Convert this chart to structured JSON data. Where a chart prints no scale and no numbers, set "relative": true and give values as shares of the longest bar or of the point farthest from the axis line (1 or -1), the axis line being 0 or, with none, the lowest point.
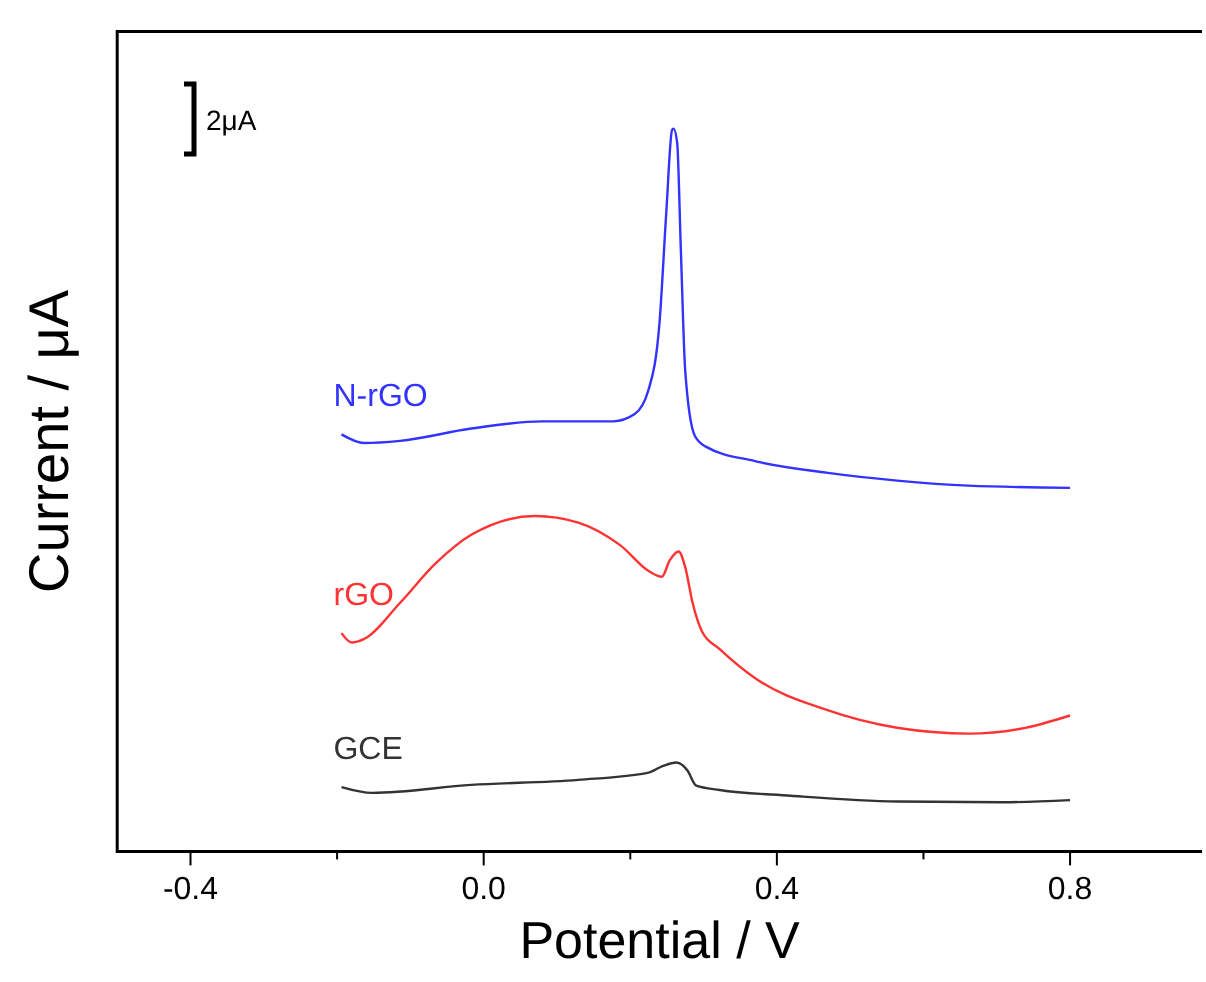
{
  "chart_data": {
    "type": "line",
    "relative": true,
    "xlabel": "Potential / V",
    "ylabel": "Current / μA",
    "xlim": [
      -0.5,
      0.98
    ],
    "xticks": [
      -0.4,
      {
        "value": -0.2,
        "label": null
      },
      {
        "value": 0,
        "label": "0.0"
      },
      {
        "value": 0.2,
        "label": null
      },
      0.4,
      {
        "value": 0.6,
        "label": null
      },
      0.8
    ],
    "annotations": [
      "2μA"
    ],
    "legend": false,
    "grid": false,
    "marker": "none",
    "line_style": "solid",
    "series": [
      {
        "name": "N-rGO",
        "color": "#3333ff",
        "x": [
          -0.194,
          -0.163,
          -0.114,
          -0.017,
          0.08,
          0.177,
          0.206,
          0.225,
          0.24,
          0.249,
          0.257,
          0.259,
          0.264,
          0.269,
          0.275,
          0.288,
          0.303,
          0.37,
          0.467,
          0.564,
          0.661,
          0.8
        ],
        "values": [
          0.577,
          0.565,
          0.568,
          0.585,
          0.595,
          0.595,
          0.605,
          0.639,
          0.733,
          0.882,
          0.998,
          1,
          0.98,
          0.832,
          0.664,
          0.575,
          0.56,
          0.54,
          0.524,
          0.513,
          0.506,
          0.503
        ]
      },
      {
        "name": "rGO",
        "color": "#ff3333",
        "x": [
          -0.194,
          -0.18,
          -0.163,
          -0.114,
          -0.066,
          -0.017,
          0.07,
          0.129,
          0.187,
          0.225,
          0.243,
          0.254,
          0.266,
          0.275,
          0.285,
          0.298,
          0.322,
          0.37,
          0.467,
          0.564,
          0.662,
          0.739,
          0.8
        ],
        "values": [
          0.302,
          0.289,
          0.294,
          0.344,
          0.398,
          0.438,
          0.464,
          0.455,
          0.423,
          0.388,
          0.38,
          0.403,
          0.415,
          0.393,
          0.344,
          0.304,
          0.28,
          0.24,
          0.196,
          0.171,
          0.163,
          0.171,
          0.188
        ]
      },
      {
        "name": "GCE",
        "color": "#333333",
        "x": [
          -0.194,
          -0.152,
          -0.017,
          0.129,
          0.225,
          0.244,
          0.263,
          0.278,
          0.29,
          0.322,
          0.419,
          0.564,
          0.709,
          0.8
        ],
        "values": [
          0.089,
          0.081,
          0.092,
          0.099,
          0.109,
          0.118,
          0.123,
          0.112,
          0.091,
          0.085,
          0.077,
          0.069,
          0.068,
          0.071
        ]
      }
    ]
  }
}
